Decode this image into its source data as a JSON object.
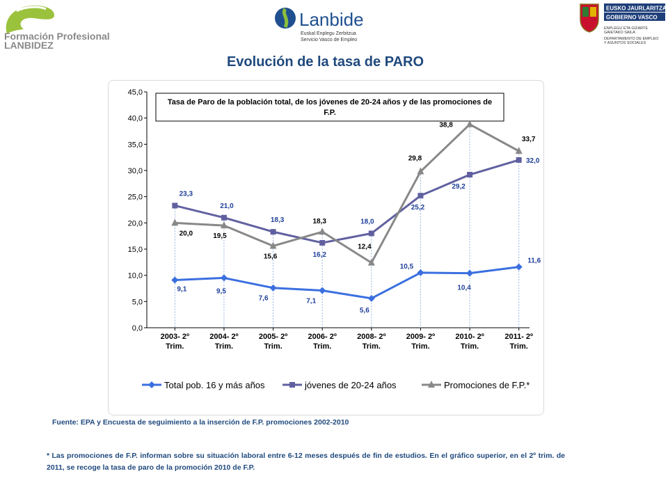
{
  "logos": {
    "fp_line1": "Formación Profesional",
    "fp_line2": "LANBIDEZ",
    "lanbide_name": "Lanbide",
    "lanbide_sub1": "Euskal Enplegu Zerbitzua",
    "lanbide_sub2": "Servicio Vasco de Empleo",
    "gv_line1": "EUSKO JAURLARITZA",
    "gv_line2": "GOBIERNO VASCO",
    "gv_dept1": "ENPLEGU ETA GIZARTE",
    "gv_dept2": "GAIETAKO SAILA",
    "gv_dept3": "DEPARTAMENTO DE EMPLEO",
    "gv_dept4": "Y ASUNTOS SOCIALES"
  },
  "page_title": "Evolución de la tasa de PARO",
  "chart_data": {
    "type": "line",
    "title_line1": "Tasa de Paro de la población total, de los jóvenes de 20-24 años y de las promociones de",
    "title_line2": "F.P.",
    "categories": [
      [
        "2003- 2º",
        "Trim."
      ],
      [
        "2004- 2º",
        "Trim."
      ],
      [
        "2005- 2º",
        "Trim."
      ],
      [
        "2006- 2º",
        "Trim."
      ],
      [
        "2008- 2º",
        "Trim."
      ],
      [
        "2009- 2º",
        "Trim."
      ],
      [
        "2010- 2º",
        "Trim."
      ],
      [
        "2011- 2º",
        "Trim."
      ]
    ],
    "ylim": [
      0,
      45
    ],
    "yticks": [
      "0,0",
      "5,0",
      "10,0",
      "15,0",
      "20,0",
      "25,0",
      "30,0",
      "35,0",
      "40,0",
      "45,0"
    ],
    "grid": false,
    "legend_position": "bottom",
    "series": [
      {
        "name": "Total pob. 16 y más años",
        "color": "#3b6fe0",
        "label_color": "#1f3f99",
        "marker": "diamond",
        "values": [
          9.1,
          9.5,
          7.6,
          7.1,
          5.6,
          10.5,
          10.4,
          11.6
        ],
        "labels": [
          "9,1",
          "9,5",
          "7,6",
          "7,1",
          "5,6",
          "10,5",
          "10,4",
          "11,6"
        ]
      },
      {
        "name": "jóvenes de 20-24 años",
        "color": "#6060a0",
        "label_color": "#1f3f99",
        "marker": "square",
        "values": [
          23.3,
          21.0,
          18.3,
          16.2,
          18.0,
          25.2,
          29.2,
          32.0
        ],
        "labels": [
          "23,3",
          "21,0",
          "18,3",
          "16,2",
          "18,0",
          "25,2",
          "29,2",
          "32,0"
        ]
      },
      {
        "name": "Promociones de F.P.*",
        "color": "#888888",
        "label_color": "#000000",
        "marker": "triangle",
        "values": [
          20.0,
          19.5,
          15.6,
          18.3,
          12.4,
          29.8,
          38.8,
          33.7
        ],
        "labels": [
          "20,0",
          "19,5",
          "15,6",
          "18,3",
          "12,4",
          "29,8",
          "38,8",
          "33,7"
        ]
      }
    ]
  },
  "source_text": "Fuente: EPA y Encuesta de seguimiento a la inserción de F.P. promociones  2002-2010",
  "note_text": "* Las promociones de F.P. informan sobre su situación laboral entre 6-12 meses después de fin de estudios. En el gráfico superior,  en el 2º trim. de 2011, se recoge la tasa de paro de la promoción  2010 de F.P."
}
